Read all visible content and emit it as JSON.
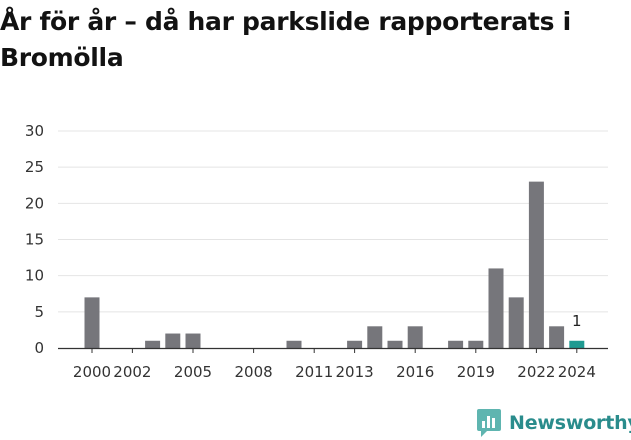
{
  "title": "År för år – då har parkslide rapporterats i Bromölla",
  "brand": {
    "name": "Newsworthy"
  },
  "colors": {
    "bar": "#76767b",
    "highlight": "#1f9a91",
    "grid": "#e4e4e4",
    "axis": "#333333",
    "brand": "#2a8c8c"
  },
  "chart_data": {
    "type": "bar",
    "title": "År för år – då har parkslide rapporterats i Bromölla",
    "xlabel": "",
    "ylabel": "",
    "ylim": [
      0,
      30
    ],
    "yticks": [
      0,
      5,
      10,
      15,
      20,
      25,
      30
    ],
    "grid": true,
    "legend": "none",
    "categories": [
      2000,
      2001,
      2002,
      2003,
      2004,
      2005,
      2006,
      2007,
      2008,
      2009,
      2010,
      2011,
      2012,
      2013,
      2014,
      2015,
      2016,
      2017,
      2018,
      2019,
      2020,
      2021,
      2022,
      2023,
      2024
    ],
    "values": [
      7,
      0,
      0,
      1,
      2,
      2,
      0,
      0,
      0,
      0,
      1,
      0,
      0,
      1,
      3,
      1,
      3,
      0,
      1,
      1,
      11,
      7,
      23,
      3,
      1
    ],
    "xtick_labels": [
      "2000",
      "2002",
      "2005",
      "2008",
      "2011",
      "2013",
      "2016",
      "2019",
      "2022",
      "2024"
    ],
    "highlight": {
      "category": 2024,
      "label": "1"
    }
  }
}
